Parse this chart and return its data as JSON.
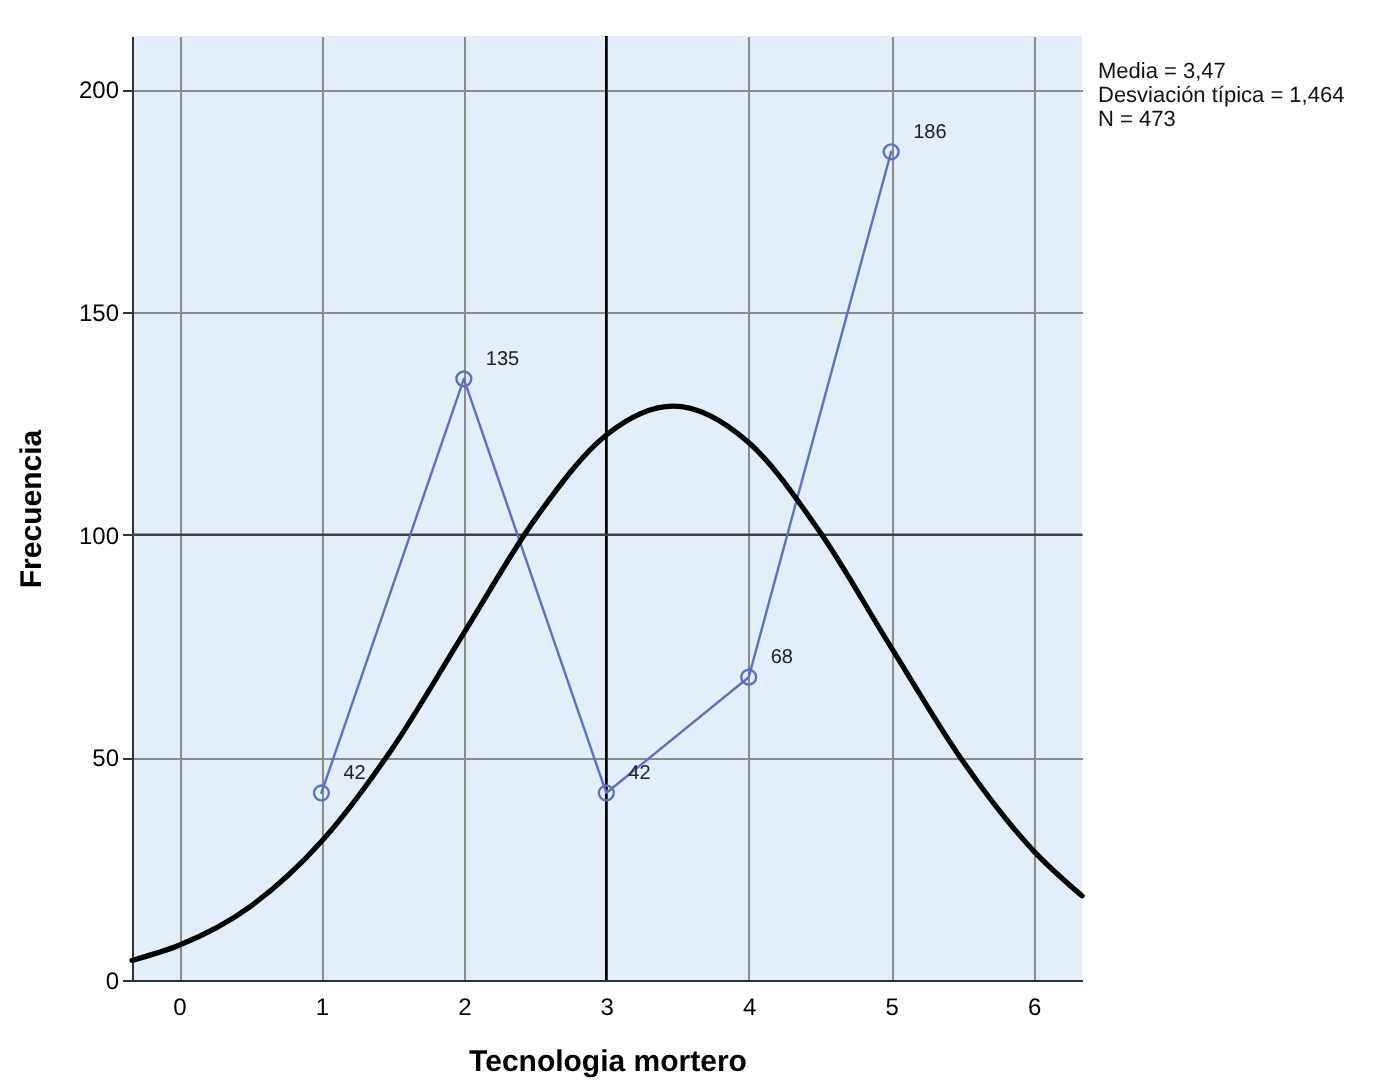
{
  "chart_data": {
    "type": "line",
    "xlabel": "Tecnologia mortero",
    "ylabel": "Frecuencia",
    "x": [
      1,
      2,
      3,
      4,
      5
    ],
    "xlim": [
      -0.33,
      6.34
    ],
    "xticks": [
      0,
      1,
      2,
      3,
      4,
      5,
      6
    ],
    "ylim": [
      0,
      212
    ],
    "yticks": [
      0,
      50,
      100,
      150,
      200
    ],
    "grid": true,
    "series": [
      {
        "color": "#5b6fc4",
        "values": [
          42,
          135,
          42,
          68,
          186
        ],
        "marker": "circle",
        "data_labels": true
      },
      {
        "type": "line",
        "color": "#000000",
        "marker": "none",
        "x": [
          -0.33,
          0,
          0.5,
          1,
          1.5,
          2,
          2.5,
          3,
          3.47,
          4,
          4.5,
          5,
          5.5,
          6,
          6.34
        ],
        "values": [
          4.4,
          7.8,
          16.5,
          31.1,
          52.1,
          77.9,
          103.5,
          122.4,
          128.9,
          120.7,
          100.6,
          74.7,
          49.3,
          29.0,
          18.9
        ]
      }
    ],
    "ref_lines": [
      {
        "axis": "x",
        "value": 3,
        "color": "#000000"
      },
      {
        "axis": "y",
        "value": 100,
        "color": "#404040"
      }
    ],
    "annotations": [
      "Media = 3,47",
      "Desviación típica = 1,464",
      "N = 473"
    ]
  }
}
